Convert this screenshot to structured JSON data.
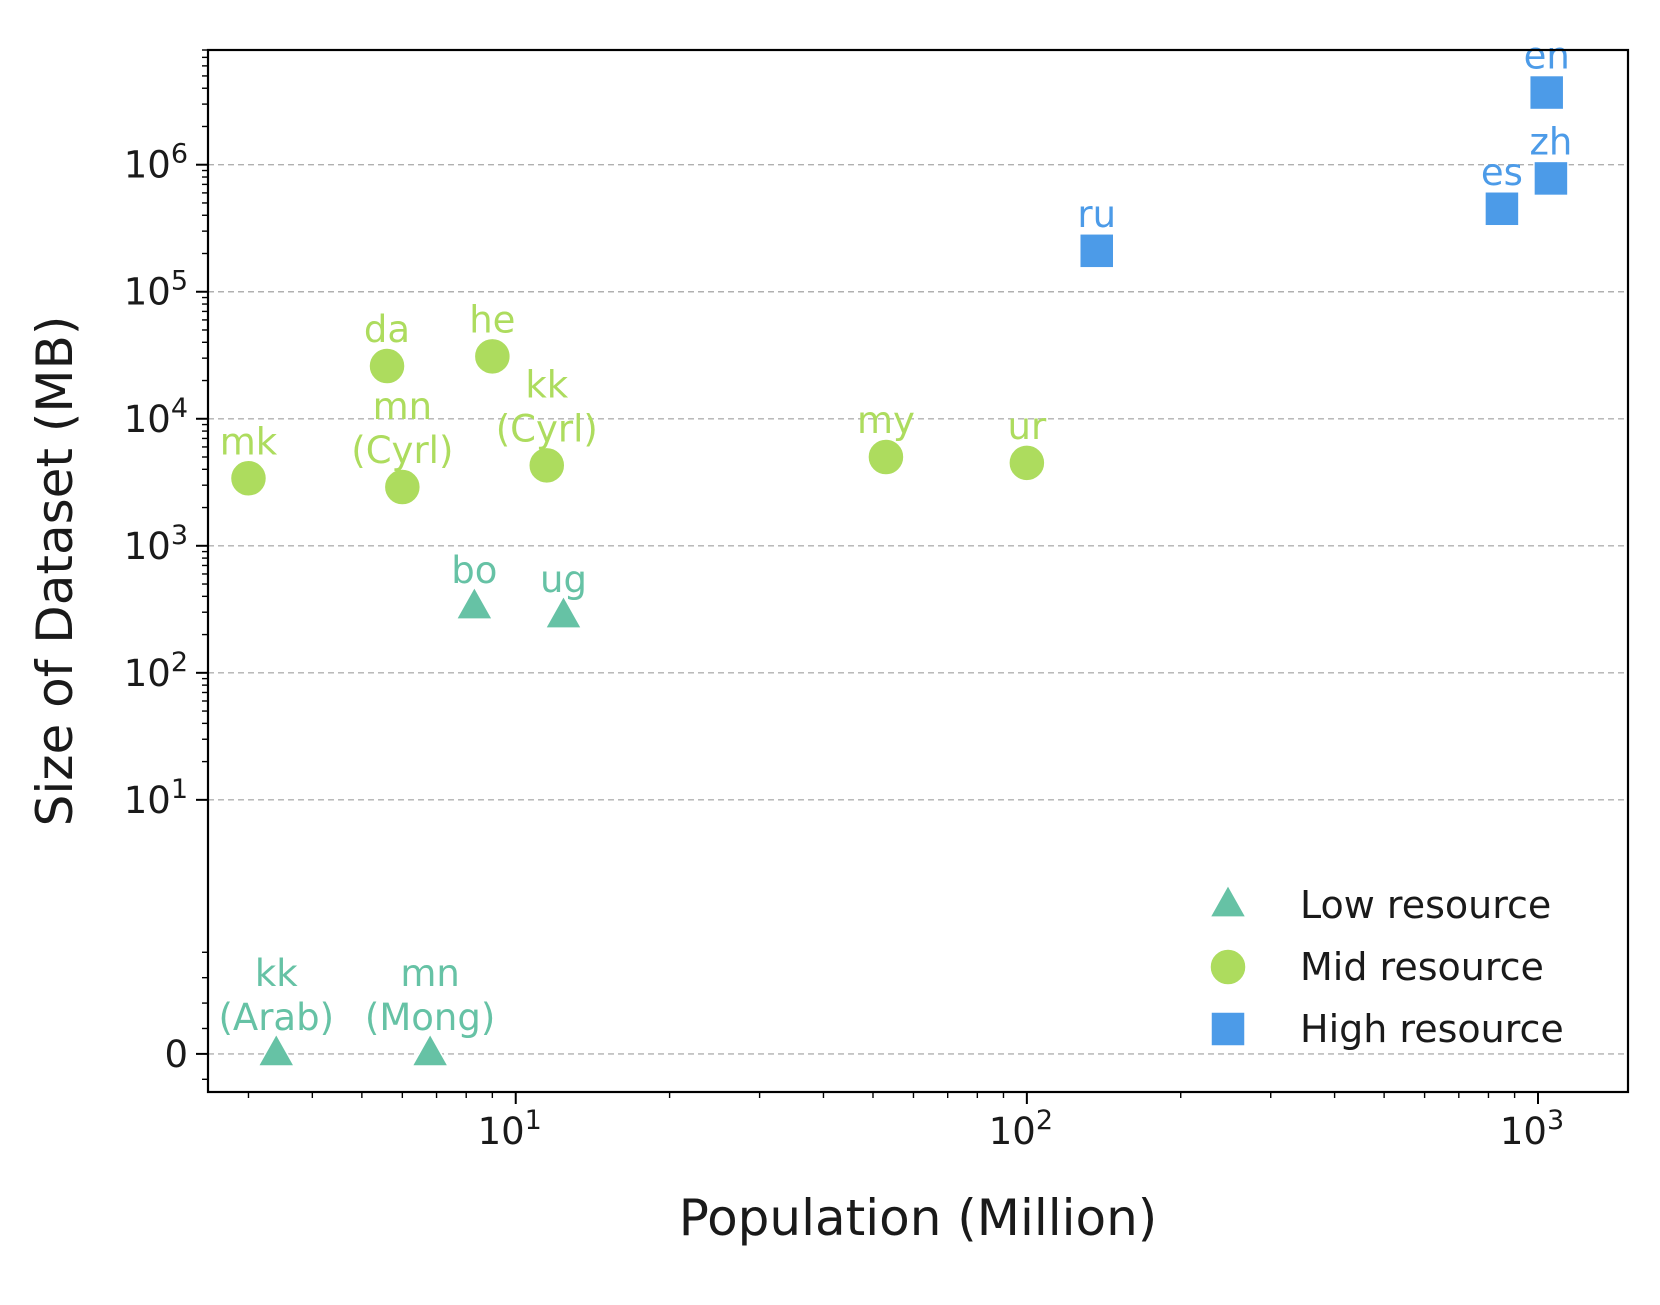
{
  "chart_data": {
    "type": "scatter",
    "title": "",
    "xlabel": "Population (Million)",
    "ylabel": "Size of Dataset (MB)",
    "x_scale": "log",
    "y_scale": "symlog",
    "xlim": [
      2.5,
      1500
    ],
    "ylim": [
      -0.3,
      8000000
    ],
    "x_ticks": [
      {
        "value": 10,
        "base": "10",
        "exp": "1"
      },
      {
        "value": 100,
        "base": "10",
        "exp": "2"
      },
      {
        "value": 1000,
        "base": "10",
        "exp": "3"
      }
    ],
    "y_ticks": [
      {
        "value": 0,
        "text": "0"
      },
      {
        "value": 10,
        "base": "10",
        "exp": "1"
      },
      {
        "value": 100,
        "base": "10",
        "exp": "2"
      },
      {
        "value": 1000,
        "base": "10",
        "exp": "3"
      },
      {
        "value": 10000,
        "base": "10",
        "exp": "4"
      },
      {
        "value": 100000,
        "base": "10",
        "exp": "5"
      },
      {
        "value": 1000000,
        "base": "10",
        "exp": "6"
      }
    ],
    "grid": "horizontal dashed",
    "legend_position": "lower-right",
    "series": [
      {
        "name": "Low resource",
        "marker": "triangle",
        "color": "#66c2a5",
        "points": [
          {
            "label": [
              "kk",
              "(Arab)"
            ],
            "x": 3.4,
            "y": 0
          },
          {
            "label": [
              "mn",
              "(Mong)"
            ],
            "x": 6.8,
            "y": 0
          },
          {
            "label": [
              "bo"
            ],
            "x": 8.3,
            "y": 330
          },
          {
            "label": [
              "ug"
            ],
            "x": 12.4,
            "y": 280
          }
        ]
      },
      {
        "name": "Mid resource",
        "marker": "circle",
        "color": "#addc5e",
        "points": [
          {
            "label": [
              "mk"
            ],
            "x": 3.0,
            "y": 3400
          },
          {
            "label": [
              "da"
            ],
            "x": 5.6,
            "y": 26000
          },
          {
            "label": [
              "mn",
              "(Cyrl)"
            ],
            "x": 6.0,
            "y": 2900
          },
          {
            "label": [
              "he"
            ],
            "x": 9.0,
            "y": 31000
          },
          {
            "label": [
              "kk",
              "(Cyrl)"
            ],
            "x": 11.5,
            "y": 4300
          },
          {
            "label": [
              "my"
            ],
            "x": 53,
            "y": 5000
          },
          {
            "label": [
              "ur"
            ],
            "x": 100,
            "y": 4500
          }
        ]
      },
      {
        "name": "High resource",
        "marker": "square",
        "color": "#4c9be8",
        "points": [
          {
            "label": [
              "ru"
            ],
            "x": 137,
            "y": 210000
          },
          {
            "label": [
              "es"
            ],
            "x": 850,
            "y": 450000
          },
          {
            "label": [
              "zh"
            ],
            "x": 1060,
            "y": 780000
          },
          {
            "label": [
              "en"
            ],
            "x": 1040,
            "y": 3700000
          }
        ]
      }
    ]
  }
}
